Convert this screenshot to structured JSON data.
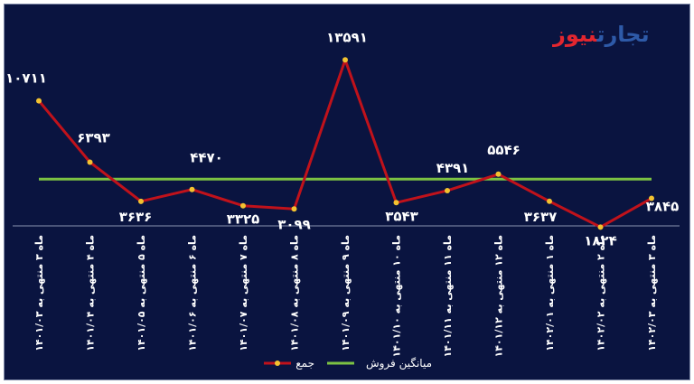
{
  "logo": {
    "part1": "تجارت",
    "part2": "نیوز"
  },
  "colors": {
    "background": "#0a1440",
    "series": "#c0121b",
    "marker": "#f2c230",
    "average": "#7cc243",
    "text": "#ffffff"
  },
  "chart_data": {
    "type": "line",
    "categories": [
      "ماه ۳ منتهی به ۱۴۰۱/۰۳",
      "ماه ۴ منتهی به ۱۴۰۱/۰۴",
      "ماه ۵ منتهی به ۱۴۰۱/۰۵",
      "ماه ۶ منتهی به ۱۴۰۱/۰۶",
      "ماه ۷ منتهی به ۱۴۰۱/۰۷",
      "ماه ۸ منتهی به ۱۴۰۱/۰۸",
      "ماه ۹ منتهی به ۱۴۰۱/۰۹",
      "ماه ۱۰ منتهی به ۱۴۰۱/۱۰",
      "ماه ۱۱ منتهی به ۱۴۰۱/۱۱",
      "ماه ۱۲ منتهی به ۱۴۰۱/۱۲",
      "ماه ۱ منتهی به ۱۴۰۲/۰۱",
      "ماه ۲ منتهی به ۱۴۰۲/۰۲",
      "ماه ۳ منتهی به ۱۴۰۲/۰۳"
    ],
    "series": [
      {
        "name": "جمع",
        "values": [
          10711,
          6393,
          3636,
          4470,
          3325,
          3099,
          13591,
          3543,
          4391,
          5546,
          3637,
          1824,
          3845
        ]
      },
      {
        "name": "میانگین فروش",
        "values": [
          5200,
          5200,
          5200,
          5200,
          5200,
          5200,
          5200,
          5200,
          5200,
          5200,
          5200,
          5200,
          5200
        ]
      }
    ],
    "data_labels": [
      "۱۰۷۱۱",
      "۶۳۹۳",
      "۳۶۳۶",
      "۴۴۷۰",
      "۳۳۲۵",
      "۳۰۹۹",
      "۱۳۵۹۱",
      "۳۵۴۳",
      "۴۳۹۱",
      "۵۵۴۶",
      "۳۶۳۷",
      "۱۸۲۴",
      "۳۸۴۵"
    ],
    "ylim": [
      0,
      14500
    ],
    "grid": false,
    "legend_position": "bottom"
  }
}
